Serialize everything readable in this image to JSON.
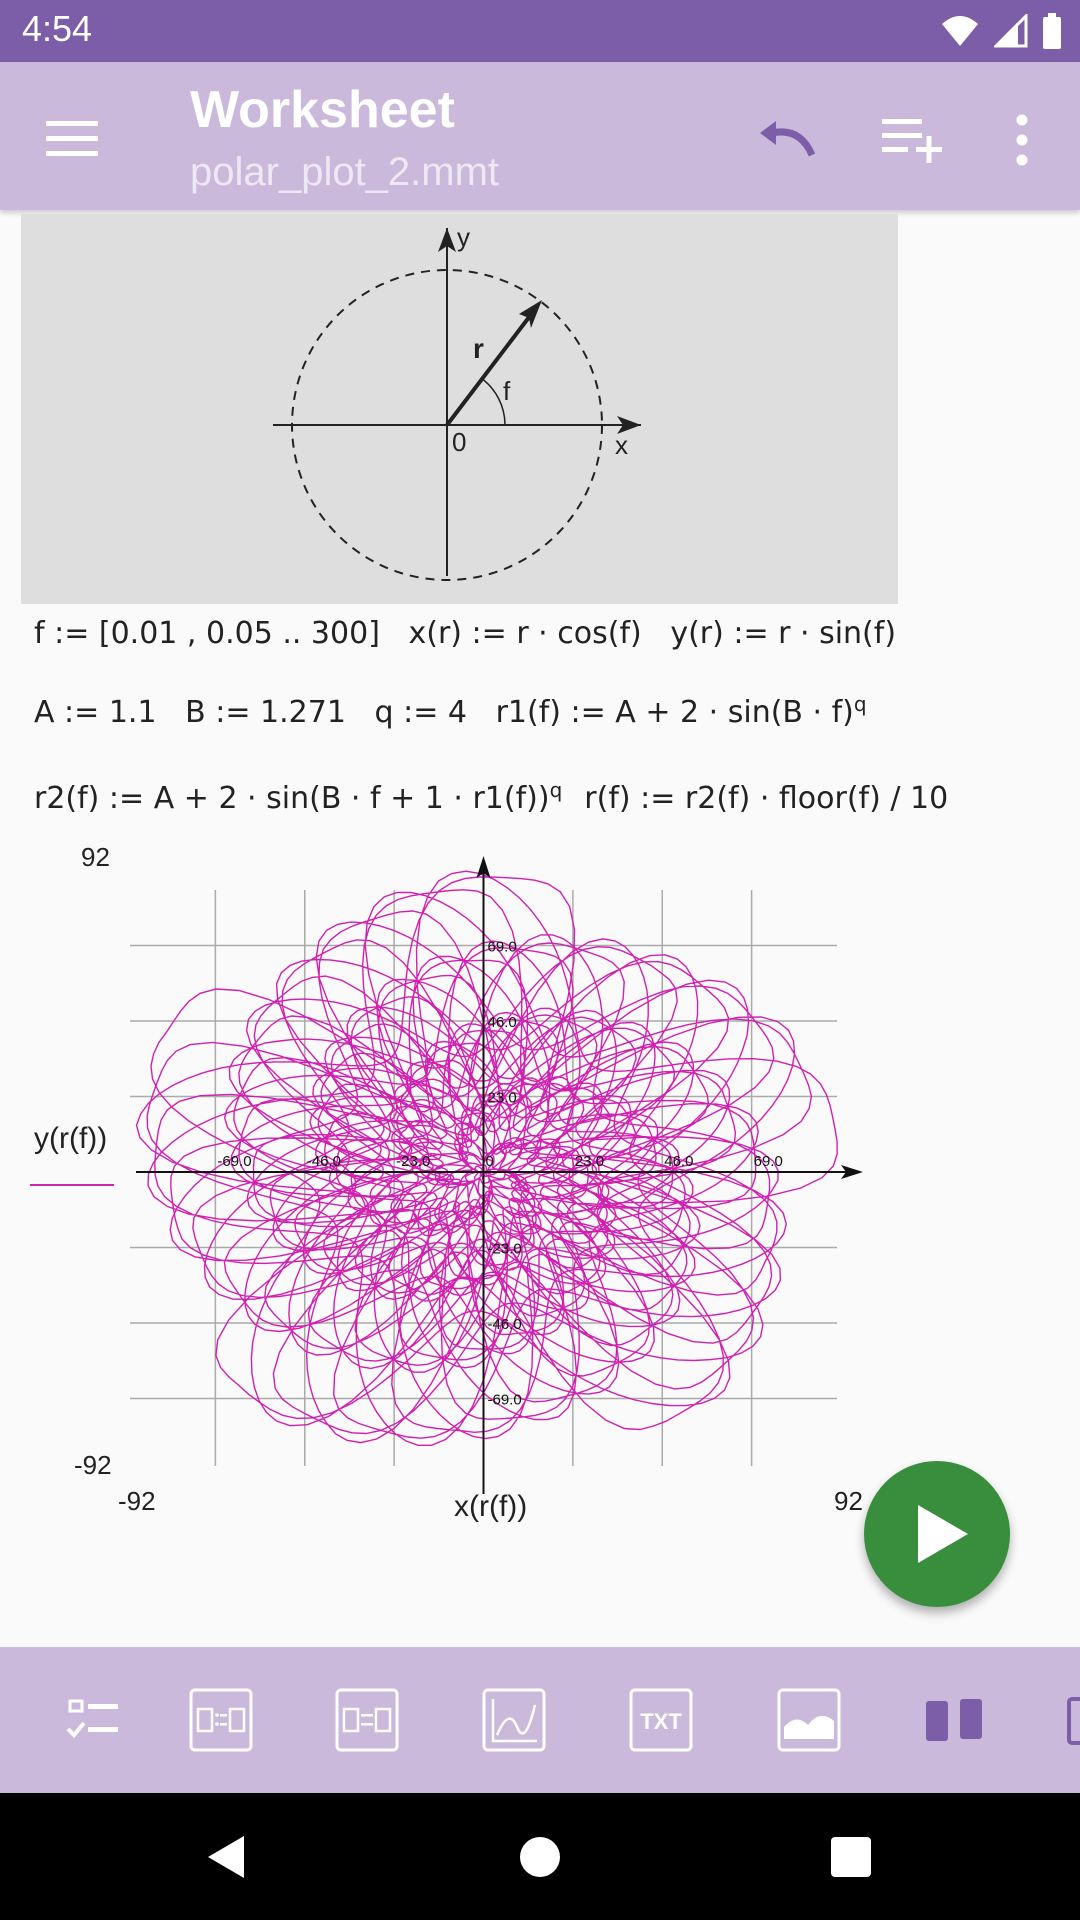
{
  "status_bar": {
    "time": "4:54"
  },
  "app_bar": {
    "title": "Worksheet",
    "subtitle": "polar_plot_2.mmt"
  },
  "diagram": {
    "y_label": "y",
    "x_label": "x",
    "r_label": "r",
    "f_label": "f",
    "origin_label": "0"
  },
  "formulas": {
    "line1": "f := [0.01 , 0.05 .. 300]   x(r) := r · cos(f)   y(r) := r · sin(f)",
    "line2": "A := 1.1   B := 1.271   q := 4   r1(f) := A + 2 · sin(B · f)",
    "line2_exp": "q",
    "line3a": "r2(f) := A + 2 · sin(B · f + 1 · r1(f))",
    "line3_exp": "q",
    "line3b": "r(f) := r2(f) · floor(f) / 10"
  },
  "chart_data": {
    "type": "line",
    "xlabel": "x(r(f))",
    "ylabel": "y(r(f))",
    "xlim": [
      -92,
      92
    ],
    "ylim": [
      -92,
      92
    ],
    "xlim_labels": [
      "-92",
      "92"
    ],
    "ylim_labels": [
      "-92",
      "92"
    ],
    "x_ticks": [
      -69.0,
      -46.0,
      -23.0,
      0,
      23.0,
      46.0,
      69.0
    ],
    "y_ticks": [
      -69.0,
      -46.0,
      -23.0,
      0,
      23.0,
      46.0,
      69.0
    ],
    "x_tick_labels": [
      "-69.0",
      "-46.0",
      "-23.0",
      "0",
      "23.0",
      "46.0",
      "69.0"
    ],
    "y_tick_labels": [
      "-69.0",
      "-46.0",
      "-23.0",
      "23.0",
      "46.0",
      "69.0"
    ],
    "grid": true,
    "series": [
      {
        "color": "#d020b0",
        "f_start": 0.01,
        "f_step": 0.04,
        "f_end": 300,
        "A": 1.1,
        "B": 1.271,
        "q": 4
      }
    ]
  },
  "colors": {
    "accent": "#7b5ea7",
    "appbar": "#cbb9dc",
    "run": "#388e3c",
    "curve": "#d020b0"
  }
}
